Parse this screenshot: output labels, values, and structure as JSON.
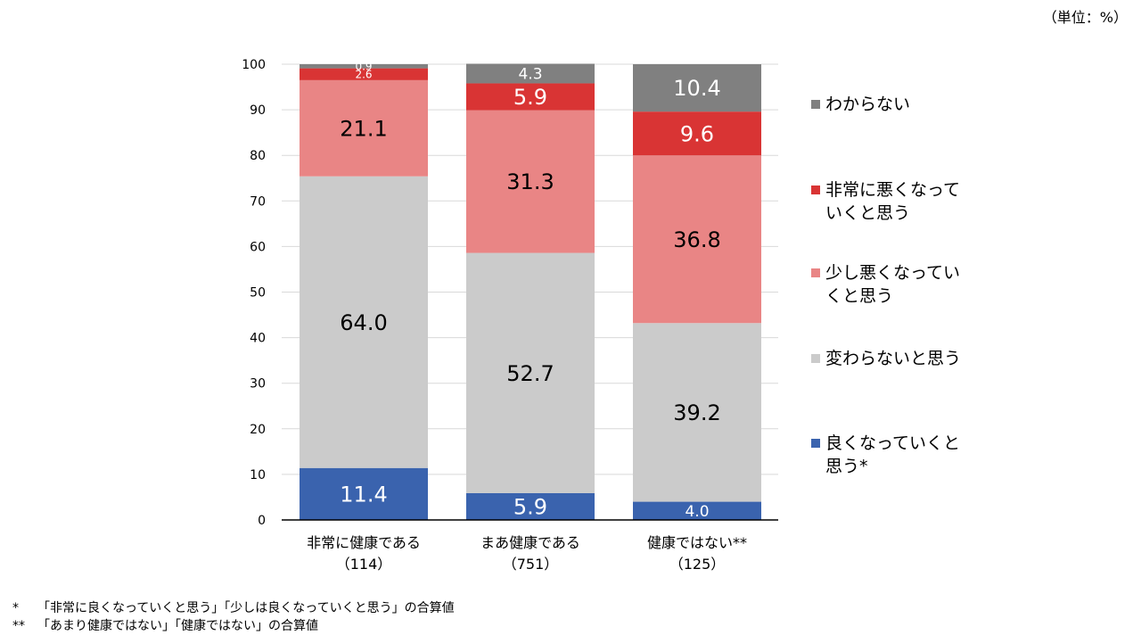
{
  "unit_label": "（単位：%）",
  "chart_data": {
    "type": "stacked-bar",
    "ylim": [
      0,
      100
    ],
    "yticks": [
      0,
      10,
      20,
      30,
      40,
      50,
      60,
      70,
      80,
      90,
      100
    ],
    "categories": [
      {
        "name": "非常に健康である",
        "n": "（114）"
      },
      {
        "name": "まあ健康である",
        "n": "（751）"
      },
      {
        "name": "健康ではない**",
        "n": "（125）"
      }
    ],
    "series": [
      {
        "name": "良くなっていくと思う*",
        "color": "#3a63ae",
        "values": [
          11.4,
          5.9,
          4.0
        ],
        "labels": [
          "11.4",
          "5.9",
          "4.0"
        ],
        "label_color": "#ffffff"
      },
      {
        "name": "変わらないと思う",
        "color": "#cbcbcb",
        "values": [
          64.0,
          52.7,
          39.2
        ],
        "labels": [
          "64.0",
          "52.7",
          "39.2"
        ],
        "label_color": "#000000"
      },
      {
        "name": "少し悪くなっていくと思う",
        "color": "#e98585",
        "values": [
          21.1,
          31.3,
          36.8
        ],
        "labels": [
          "21.1",
          "31.3",
          "36.8"
        ],
        "label_color": "#000000"
      },
      {
        "name": "非常に悪くなっていくと思う",
        "color": "#d93434",
        "values": [
          2.6,
          5.9,
          9.6
        ],
        "labels": [
          "2.6",
          "5.9",
          "9.6"
        ],
        "label_color": "#ffffff"
      },
      {
        "name": "わからない",
        "color": "#808080",
        "values": [
          0.9,
          4.3,
          10.4
        ],
        "labels": [
          "0.9",
          "4.3",
          "10.4"
        ],
        "label_color": "#ffffff"
      }
    ]
  },
  "legend": [
    {
      "line1": "わからない",
      "line2": "",
      "color": "#808080"
    },
    {
      "line1": "非常に悪くなって",
      "line2": "いくと思う",
      "color": "#d93434"
    },
    {
      "line1": "少し悪くなってい",
      "line2": "くと思う",
      "color": "#e98585"
    },
    {
      "line1": "変わらないと思う",
      "line2": "",
      "color": "#cbcbcb"
    },
    {
      "line1": "良くなっていくと",
      "line2": "思う*",
      "color": "#3a63ae"
    }
  ],
  "notes": [
    {
      "mark": "*",
      "text": "「非常に良くなっていくと思う」「少しは良くなっていくと思う」の合算値"
    },
    {
      "mark": "**",
      "text": "「あまり健康ではない」「健康ではない」の合算値"
    }
  ]
}
